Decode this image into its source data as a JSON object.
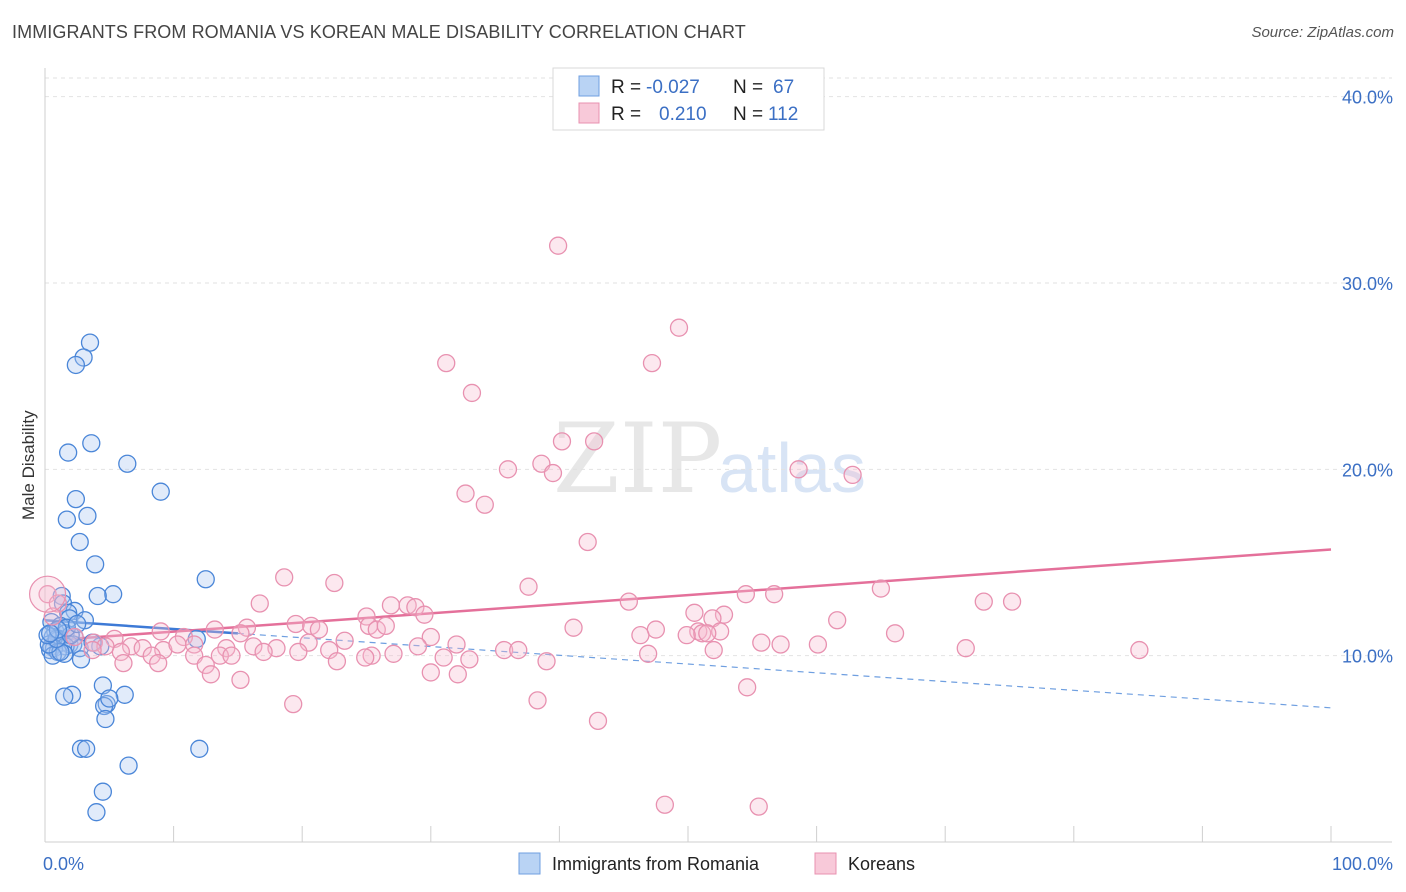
{
  "title": "IMMIGRANTS FROM ROMANIA VS KOREAN MALE DISABILITY CORRELATION CHART",
  "source": "Source: ZipAtlas.com",
  "watermark": {
    "zip": "ZIP",
    "atlas": "atlas"
  },
  "colors": {
    "blue": "#4a86d8",
    "pink": "#e57fa3",
    "blue_fill": "#a8c7f0",
    "pink_fill": "#f6bdd0",
    "axis_text": "#3b6fc4"
  },
  "legend": {
    "series": [
      {
        "r_label": "R =",
        "r_value": "-0.027",
        "n_label": "N =",
        "n_value": "67"
      },
      {
        "r_label": "R =",
        "r_value": "0.210",
        "n_label": "N =",
        "n_value": "112"
      }
    ]
  },
  "bottom_legend": [
    "Immigrants from Romania",
    "Koreans"
  ],
  "chart_data": {
    "type": "scatter",
    "title": "IMMIGRANTS FROM ROMANIA VS KOREAN MALE DISABILITY CORRELATION CHART",
    "ylabel": "Male Disability",
    "xlim": [
      0,
      100
    ],
    "ylim": [
      0,
      41
    ],
    "x_tick_labels": [
      {
        "value": 0,
        "label": "0.0%"
      },
      {
        "value": 100,
        "label": "100.0%"
      }
    ],
    "y_tick_labels": [
      {
        "value": 10,
        "label": "10.0%"
      },
      {
        "value": 20,
        "label": "20.0%"
      },
      {
        "value": 30,
        "label": "30.0%"
      },
      {
        "value": 40,
        "label": "40.0%"
      }
    ],
    "series": [
      {
        "name": "Immigrants from Romania",
        "color": "#4a86d8",
        "trend": {
          "x": [
            0,
            100
          ],
          "y": [
            11.9,
            7.2
          ],
          "solid_until": 15
        },
        "points": [
          [
            3.5,
            26.8
          ],
          [
            3.0,
            26.0
          ],
          [
            2.4,
            25.6
          ],
          [
            3.6,
            21.4
          ],
          [
            1.8,
            20.9
          ],
          [
            6.4,
            20.3
          ],
          [
            9.0,
            18.8
          ],
          [
            2.4,
            18.4
          ],
          [
            3.3,
            17.5
          ],
          [
            1.7,
            17.3
          ],
          [
            2.7,
            16.1
          ],
          [
            3.9,
            14.9
          ],
          [
            12.5,
            14.1
          ],
          [
            5.3,
            13.3
          ],
          [
            4.1,
            13.2
          ],
          [
            1.3,
            13.2
          ],
          [
            1.4,
            12.8
          ],
          [
            2.3,
            12.4
          ],
          [
            1.8,
            12.3
          ],
          [
            1.9,
            12.0
          ],
          [
            3.1,
            11.9
          ],
          [
            0.5,
            11.8
          ],
          [
            1.2,
            11.6
          ],
          [
            0.8,
            11.3
          ],
          [
            1.6,
            11.2
          ],
          [
            2.3,
            11.0
          ],
          [
            0.6,
            11.0
          ],
          [
            1.1,
            10.9
          ],
          [
            0.9,
            10.8
          ],
          [
            1.3,
            10.7
          ],
          [
            1.9,
            10.6
          ],
          [
            2.2,
            10.6
          ],
          [
            0.5,
            10.5
          ],
          [
            1.6,
            10.5
          ],
          [
            0.7,
            10.4
          ],
          [
            2.7,
            10.4
          ],
          [
            0.4,
            10.3
          ],
          [
            1.0,
            10.2
          ],
          [
            1.5,
            10.1
          ],
          [
            0.6,
            10.0
          ],
          [
            1.2,
            10.2
          ],
          [
            0.3,
            10.6
          ],
          [
            0.9,
            10.9
          ],
          [
            2.0,
            11.1
          ],
          [
            4.3,
            10.5
          ],
          [
            11.8,
            10.9
          ],
          [
            2.8,
            9.8
          ],
          [
            4.5,
            8.4
          ],
          [
            6.2,
            7.9
          ],
          [
            2.1,
            7.9
          ],
          [
            1.5,
            7.8
          ],
          [
            4.8,
            7.4
          ],
          [
            4.6,
            7.3
          ],
          [
            4.7,
            6.6
          ],
          [
            2.8,
            5.0
          ],
          [
            3.2,
            5.0
          ],
          [
            12.0,
            5.0
          ],
          [
            6.5,
            4.1
          ],
          [
            4.5,
            2.7
          ],
          [
            4.0,
            1.6
          ],
          [
            0.2,
            11.1
          ],
          [
            1.7,
            11.5
          ],
          [
            3.7,
            10.7
          ],
          [
            2.5,
            11.7
          ],
          [
            1.0,
            11.4
          ],
          [
            0.4,
            11.2
          ],
          [
            5.0,
            7.7
          ]
        ]
      },
      {
        "name": "Koreans",
        "color": "#e57fa3",
        "trend": {
          "x": [
            0,
            100
          ],
          "y": [
            10.8,
            15.7
          ]
        },
        "points": [
          [
            39.9,
            32.0
          ],
          [
            49.3,
            27.6
          ],
          [
            31.2,
            25.7
          ],
          [
            47.2,
            25.7
          ],
          [
            33.2,
            24.1
          ],
          [
            40.2,
            21.5
          ],
          [
            42.7,
            21.5
          ],
          [
            36.0,
            20.0
          ],
          [
            38.6,
            20.3
          ],
          [
            39.5,
            19.8
          ],
          [
            58.6,
            20.0
          ],
          [
            62.8,
            19.7
          ],
          [
            32.7,
            18.7
          ],
          [
            34.2,
            18.1
          ],
          [
            42.2,
            16.1
          ],
          [
            18.6,
            14.2
          ],
          [
            22.5,
            13.9
          ],
          [
            37.6,
            13.7
          ],
          [
            65.0,
            13.6
          ],
          [
            54.5,
            13.3
          ],
          [
            56.7,
            13.3
          ],
          [
            16.7,
            12.8
          ],
          [
            26.9,
            12.7
          ],
          [
            28.2,
            12.7
          ],
          [
            28.8,
            12.6
          ],
          [
            45.4,
            12.9
          ],
          [
            73.0,
            12.9
          ],
          [
            75.2,
            12.9
          ],
          [
            29.5,
            12.2
          ],
          [
            25.0,
            12.1
          ],
          [
            52.8,
            12.2
          ],
          [
            50.5,
            12.3
          ],
          [
            51.9,
            12.0
          ],
          [
            61.6,
            11.9
          ],
          [
            19.5,
            11.7
          ],
          [
            15.7,
            11.5
          ],
          [
            20.7,
            11.6
          ],
          [
            21.3,
            11.4
          ],
          [
            25.2,
            11.6
          ],
          [
            25.8,
            11.4
          ],
          [
            26.5,
            11.6
          ],
          [
            41.1,
            11.5
          ],
          [
            47.5,
            11.4
          ],
          [
            50.8,
            11.3
          ],
          [
            51.1,
            11.2
          ],
          [
            52.5,
            11.3
          ],
          [
            46.3,
            11.1
          ],
          [
            49.9,
            11.1
          ],
          [
            13.2,
            11.4
          ],
          [
            15.2,
            11.2
          ],
          [
            9.0,
            11.3
          ],
          [
            10.8,
            11.0
          ],
          [
            5.4,
            10.9
          ],
          [
            6.7,
            10.5
          ],
          [
            7.6,
            10.4
          ],
          [
            9.2,
            10.3
          ],
          [
            10.3,
            10.6
          ],
          [
            11.6,
            10.6
          ],
          [
            14.1,
            10.4
          ],
          [
            16.2,
            10.5
          ],
          [
            18.0,
            10.4
          ],
          [
            20.5,
            10.7
          ],
          [
            22.1,
            10.3
          ],
          [
            23.3,
            10.8
          ],
          [
            27.1,
            10.1
          ],
          [
            30.0,
            11.0
          ],
          [
            32.0,
            10.6
          ],
          [
            35.7,
            10.3
          ],
          [
            36.8,
            10.3
          ],
          [
            3.8,
            10.7
          ],
          [
            4.7,
            10.5
          ],
          [
            5.9,
            10.2
          ],
          [
            8.3,
            10.0
          ],
          [
            11.6,
            10.0
          ],
          [
            13.6,
            10.0
          ],
          [
            14.5,
            10.0
          ],
          [
            17.0,
            10.2
          ],
          [
            19.7,
            10.2
          ],
          [
            22.7,
            9.7
          ],
          [
            25.4,
            10.0
          ],
          [
            31.0,
            9.9
          ],
          [
            8.8,
            9.6
          ],
          [
            12.5,
            9.5
          ],
          [
            55.7,
            10.7
          ],
          [
            57.2,
            10.6
          ],
          [
            60.1,
            10.6
          ],
          [
            51.5,
            11.2
          ],
          [
            66.1,
            11.2
          ],
          [
            24.9,
            9.9
          ],
          [
            29.0,
            10.5
          ],
          [
            33.0,
            9.8
          ],
          [
            39.0,
            9.7
          ],
          [
            46.9,
            10.1
          ],
          [
            52.0,
            10.3
          ],
          [
            71.6,
            10.4
          ],
          [
            85.1,
            10.3
          ],
          [
            2.3,
            11.0
          ],
          [
            3.7,
            10.3
          ],
          [
            6.1,
            9.6
          ],
          [
            12.9,
            9.0
          ],
          [
            15.2,
            8.7
          ],
          [
            30.0,
            9.1
          ],
          [
            32.1,
            9.0
          ],
          [
            19.3,
            7.4
          ],
          [
            38.3,
            7.6
          ],
          [
            54.6,
            8.3
          ],
          [
            43.0,
            6.5
          ],
          [
            48.2,
            2.0
          ],
          [
            55.5,
            1.9
          ],
          [
            0.2,
            13.3
          ],
          [
            1.0,
            12.8
          ],
          [
            0.6,
            12.1
          ]
        ]
      }
    ],
    "legend_placement": "top-center",
    "grid": true
  }
}
